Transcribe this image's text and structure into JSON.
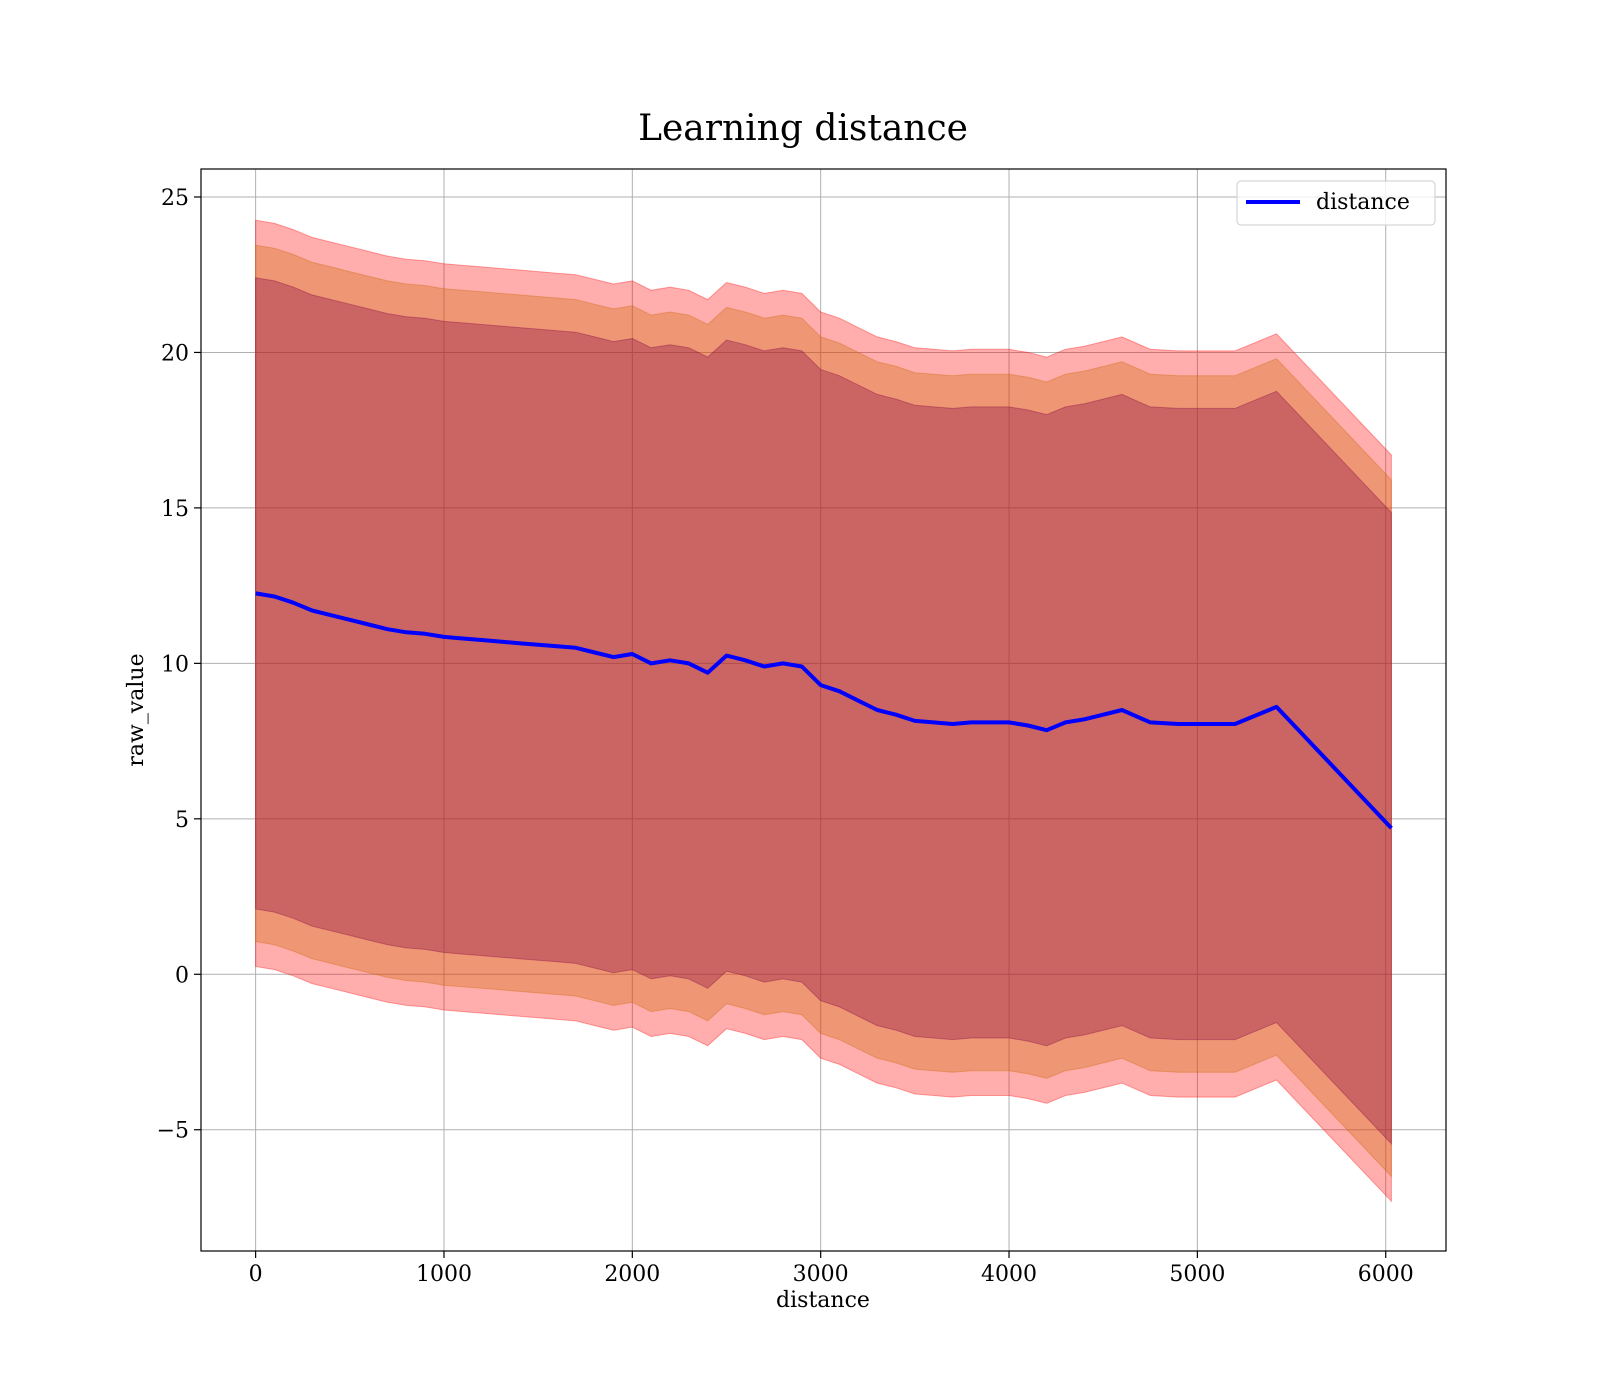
{
  "chart_data": {
    "type": "line",
    "title": "Learning distance",
    "xlabel": "distance",
    "ylabel": "raw_value",
    "xlim": [
      -290,
      6320
    ],
    "ylim": [
      -8.9,
      25.9
    ],
    "xticks": [
      0,
      1000,
      2000,
      3000,
      4000,
      5000,
      6000
    ],
    "xtick_labels": [
      "0",
      "1000",
      "2000",
      "3000",
      "4000",
      "5000",
      "6000"
    ],
    "yticks": [
      -5,
      0,
      5,
      10,
      15,
      20,
      25
    ],
    "ytick_labels": [
      "−5",
      "0",
      "5",
      "10",
      "15",
      "20",
      "25"
    ],
    "grid": true,
    "legend": {
      "position": "top-right",
      "entries": [
        "distance"
      ]
    },
    "colors": {
      "line": "#0000ff",
      "band_outer": "#ff0000",
      "band_middle": "#cc6600",
      "band_inner": "#800040",
      "grid": "#b0b0b0"
    },
    "x": [
      0,
      100,
      200,
      300,
      400,
      500,
      600,
      700,
      800,
      900,
      1000,
      1100,
      1200,
      1300,
      1400,
      1500,
      1600,
      1700,
      1800,
      1900,
      2000,
      2100,
      2200,
      2300,
      2400,
      2500,
      2600,
      2700,
      2800,
      2900,
      3000,
      3100,
      3200,
      3300,
      3400,
      3500,
      3600,
      3700,
      3800,
      3900,
      4000,
      4100,
      4200,
      4300,
      4400,
      4600,
      4750,
      4900,
      5200,
      5420,
      6030
    ],
    "series": [
      {
        "name": "distance",
        "values": [
          12.25,
          12.15,
          11.95,
          11.7,
          11.55,
          11.4,
          11.25,
          11.1,
          11.0,
          10.95,
          10.85,
          10.8,
          10.75,
          10.7,
          10.65,
          10.6,
          10.55,
          10.5,
          10.35,
          10.2,
          10.3,
          10.0,
          10.1,
          10.0,
          9.7,
          10.25,
          10.1,
          9.9,
          10.0,
          9.9,
          9.3,
          9.1,
          8.8,
          8.5,
          8.35,
          8.15,
          8.1,
          8.05,
          8.1,
          8.1,
          8.1,
          8.0,
          7.85,
          8.1,
          8.2,
          8.5,
          8.1,
          8.05,
          8.05,
          8.6,
          4.7
        ]
      }
    ],
    "bands": [
      {
        "layer": "outer",
        "offset_upper": 12.0,
        "offset_lower": 12.0
      },
      {
        "layer": "middle",
        "offset_upper": 11.2,
        "offset_lower": 11.2
      },
      {
        "layer": "inner",
        "offset_upper": 10.15,
        "offset_lower": 10.15
      }
    ]
  }
}
